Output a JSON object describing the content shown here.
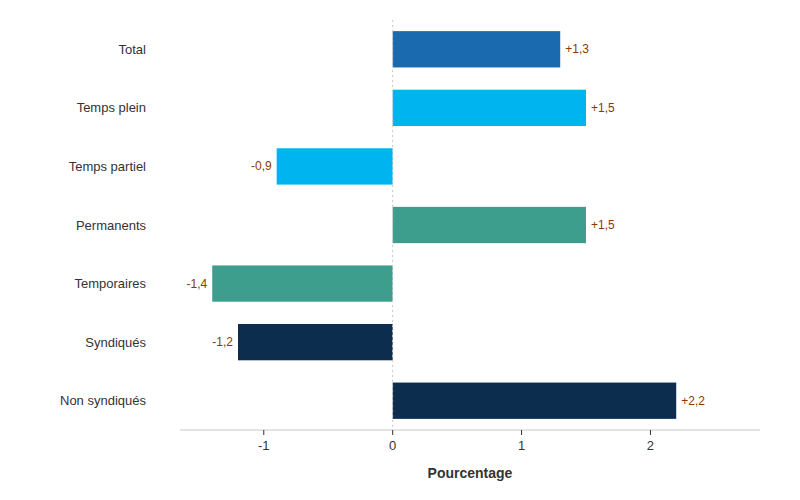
{
  "chart_data": {
    "type": "bar",
    "orientation": "horizontal",
    "categories": [
      "Non syndiqués",
      "Syndiqués",
      "Temporaires",
      "Permanents",
      "Temps partiel",
      "Temps plein",
      "Total"
    ],
    "values": [
      2.2,
      -1.2,
      -1.4,
      1.5,
      -0.9,
      1.5,
      1.3
    ],
    "value_labels": [
      "+2,2",
      "-1,2",
      "-1,4",
      "+1,5",
      "-0,9",
      "+1,5",
      "+1,3"
    ],
    "data_labels": true,
    "colors": [
      "#0d2d4e",
      "#0d2d4e",
      "#3d9e8e",
      "#3d9e8e",
      "#00b4f0",
      "#00b4f0",
      "#1a6ab0"
    ],
    "xlabel": "Pourcentage",
    "xlim": [
      -1.65,
      2.85
    ],
    "xticks": [
      -1,
      0,
      1,
      2
    ]
  }
}
